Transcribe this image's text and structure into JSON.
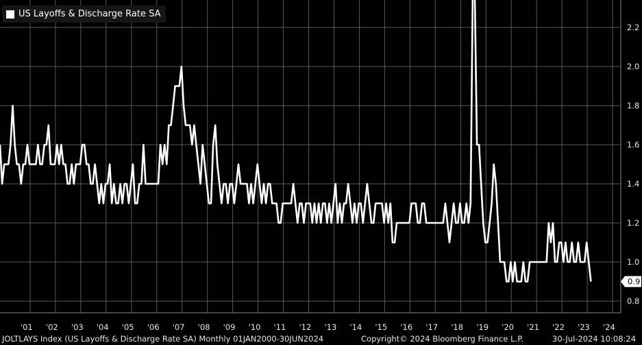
{
  "chart_data": {
    "type": "line",
    "series": [
      {
        "name": "US Layoffs & Discharge Rate SA",
        "color": "#ffffff",
        "values": [
          1.6,
          1.4,
          1.5,
          1.5,
          1.5,
          1.6,
          1.8,
          1.6,
          1.5,
          1.5,
          1.4,
          1.5,
          1.5,
          1.6,
          1.5,
          1.5,
          1.5,
          1.5,
          1.6,
          1.5,
          1.5,
          1.6,
          1.6,
          1.7,
          1.5,
          1.5,
          1.5,
          1.6,
          1.5,
          1.6,
          1.5,
          1.5,
          1.4,
          1.4,
          1.5,
          1.4,
          1.5,
          1.5,
          1.5,
          1.6,
          1.6,
          1.5,
          1.5,
          1.4,
          1.4,
          1.5,
          1.4,
          1.3,
          1.4,
          1.3,
          1.4,
          1.4,
          1.5,
          1.3,
          1.4,
          1.3,
          1.3,
          1.4,
          1.3,
          1.4,
          1.4,
          1.3,
          1.4,
          1.5,
          1.3,
          1.3,
          1.4,
          1.4,
          1.6,
          1.4,
          1.4,
          1.4,
          1.4,
          1.4,
          1.4,
          1.4,
          1.6,
          1.5,
          1.6,
          1.5,
          1.7,
          1.7,
          1.8,
          1.9,
          1.9,
          1.9,
          2.0,
          1.8,
          1.7,
          1.7,
          1.7,
          1.6,
          1.7,
          1.6,
          1.5,
          1.4,
          1.6,
          1.5,
          1.4,
          1.3,
          1.3,
          1.6,
          1.7,
          1.5,
          1.4,
          1.3,
          1.4,
          1.4,
          1.3,
          1.4,
          1.4,
          1.3,
          1.4,
          1.5,
          1.4,
          1.4,
          1.4,
          1.4,
          1.3,
          1.4,
          1.3,
          1.4,
          1.5,
          1.4,
          1.3,
          1.4,
          1.3,
          1.4,
          1.4,
          1.3,
          1.3,
          1.3,
          1.2,
          1.2,
          1.3,
          1.3,
          1.3,
          1.3,
          1.3,
          1.4,
          1.3,
          1.2,
          1.3,
          1.3,
          1.2,
          1.3,
          1.3,
          1.3,
          1.2,
          1.3,
          1.2,
          1.3,
          1.2,
          1.3,
          1.3,
          1.2,
          1.3,
          1.2,
          1.3,
          1.4,
          1.2,
          1.3,
          1.2,
          1.3,
          1.3,
          1.4,
          1.3,
          1.2,
          1.3,
          1.2,
          1.3,
          1.3,
          1.2,
          1.3,
          1.4,
          1.3,
          1.2,
          1.2,
          1.3,
          1.3,
          1.3,
          1.3,
          1.2,
          1.3,
          1.2,
          1.3,
          1.1,
          1.1,
          1.2,
          1.2,
          1.2,
          1.2,
          1.2,
          1.2,
          1.2,
          1.3,
          1.3,
          1.3,
          1.2,
          1.2,
          1.3,
          1.3,
          1.2,
          1.2,
          1.2,
          1.2,
          1.2,
          1.2,
          1.2,
          1.2,
          1.2,
          1.3,
          1.2,
          1.1,
          1.2,
          1.3,
          1.2,
          1.2,
          1.3,
          1.2,
          1.2,
          1.3,
          1.2,
          1.3,
          2.4,
          2.4,
          1.6,
          1.6,
          1.4,
          1.2,
          1.1,
          1.1,
          1.2,
          1.3,
          1.5,
          1.4,
          1.2,
          1.0,
          1.0,
          1.0,
          0.9,
          0.9,
          1.0,
          0.9,
          1.0,
          0.9,
          0.9,
          0.9,
          1.0,
          0.9,
          0.9,
          1.0,
          1.0,
          1.0,
          1.0,
          1.0,
          1.0,
          1.0,
          1.0,
          1.0,
          1.2,
          1.1,
          1.2,
          1.0,
          1.0,
          1.1,
          1.1,
          1.0,
          1.1,
          1.0,
          1.0,
          1.1,
          1.0,
          1.0,
          1.1,
          1.0,
          1.0,
          1.0,
          1.1,
          1.0,
          0.9
        ]
      }
    ],
    "x_start": "2000-01",
    "x_end": "2024-06",
    "frequency": "Monthly",
    "ylim": [
      0.75,
      2.35
    ],
    "y_ticks": [
      0.8,
      1.0,
      1.2,
      1.4,
      1.6,
      1.8,
      2.0,
      2.2
    ],
    "y_tick_labels": [
      "0.8",
      "1.0",
      "1.2",
      "1.4",
      "1.6",
      "1.8",
      "2.0",
      "2.2"
    ],
    "x_tick_labels": [
      "'01",
      "'02",
      "'03",
      "'04",
      "'05",
      "'06",
      "'07",
      "'08",
      "'09",
      "'10",
      "'11",
      "'12",
      "'13",
      "'14",
      "'15",
      "'16",
      "'17",
      "'18",
      "'19",
      "'20",
      "'21",
      "'22",
      "'23",
      "'24"
    ],
    "last_value_label": "0.9",
    "grid": true,
    "background": "#000000",
    "line_color": "#ffffff",
    "grid_color": "#5a5a5a"
  },
  "legend": {
    "label": "US Layoffs & Discharge Rate SA"
  },
  "footer": {
    "source": "JOLTLAYS Index (US Layoffs & Discharge Rate SA)  Monthly 01JAN2000-30JUN2024",
    "copyright": "Copyright© 2024 Bloomberg Finance L.P.",
    "timestamp": "30-Jul-2024 10:08:24"
  }
}
